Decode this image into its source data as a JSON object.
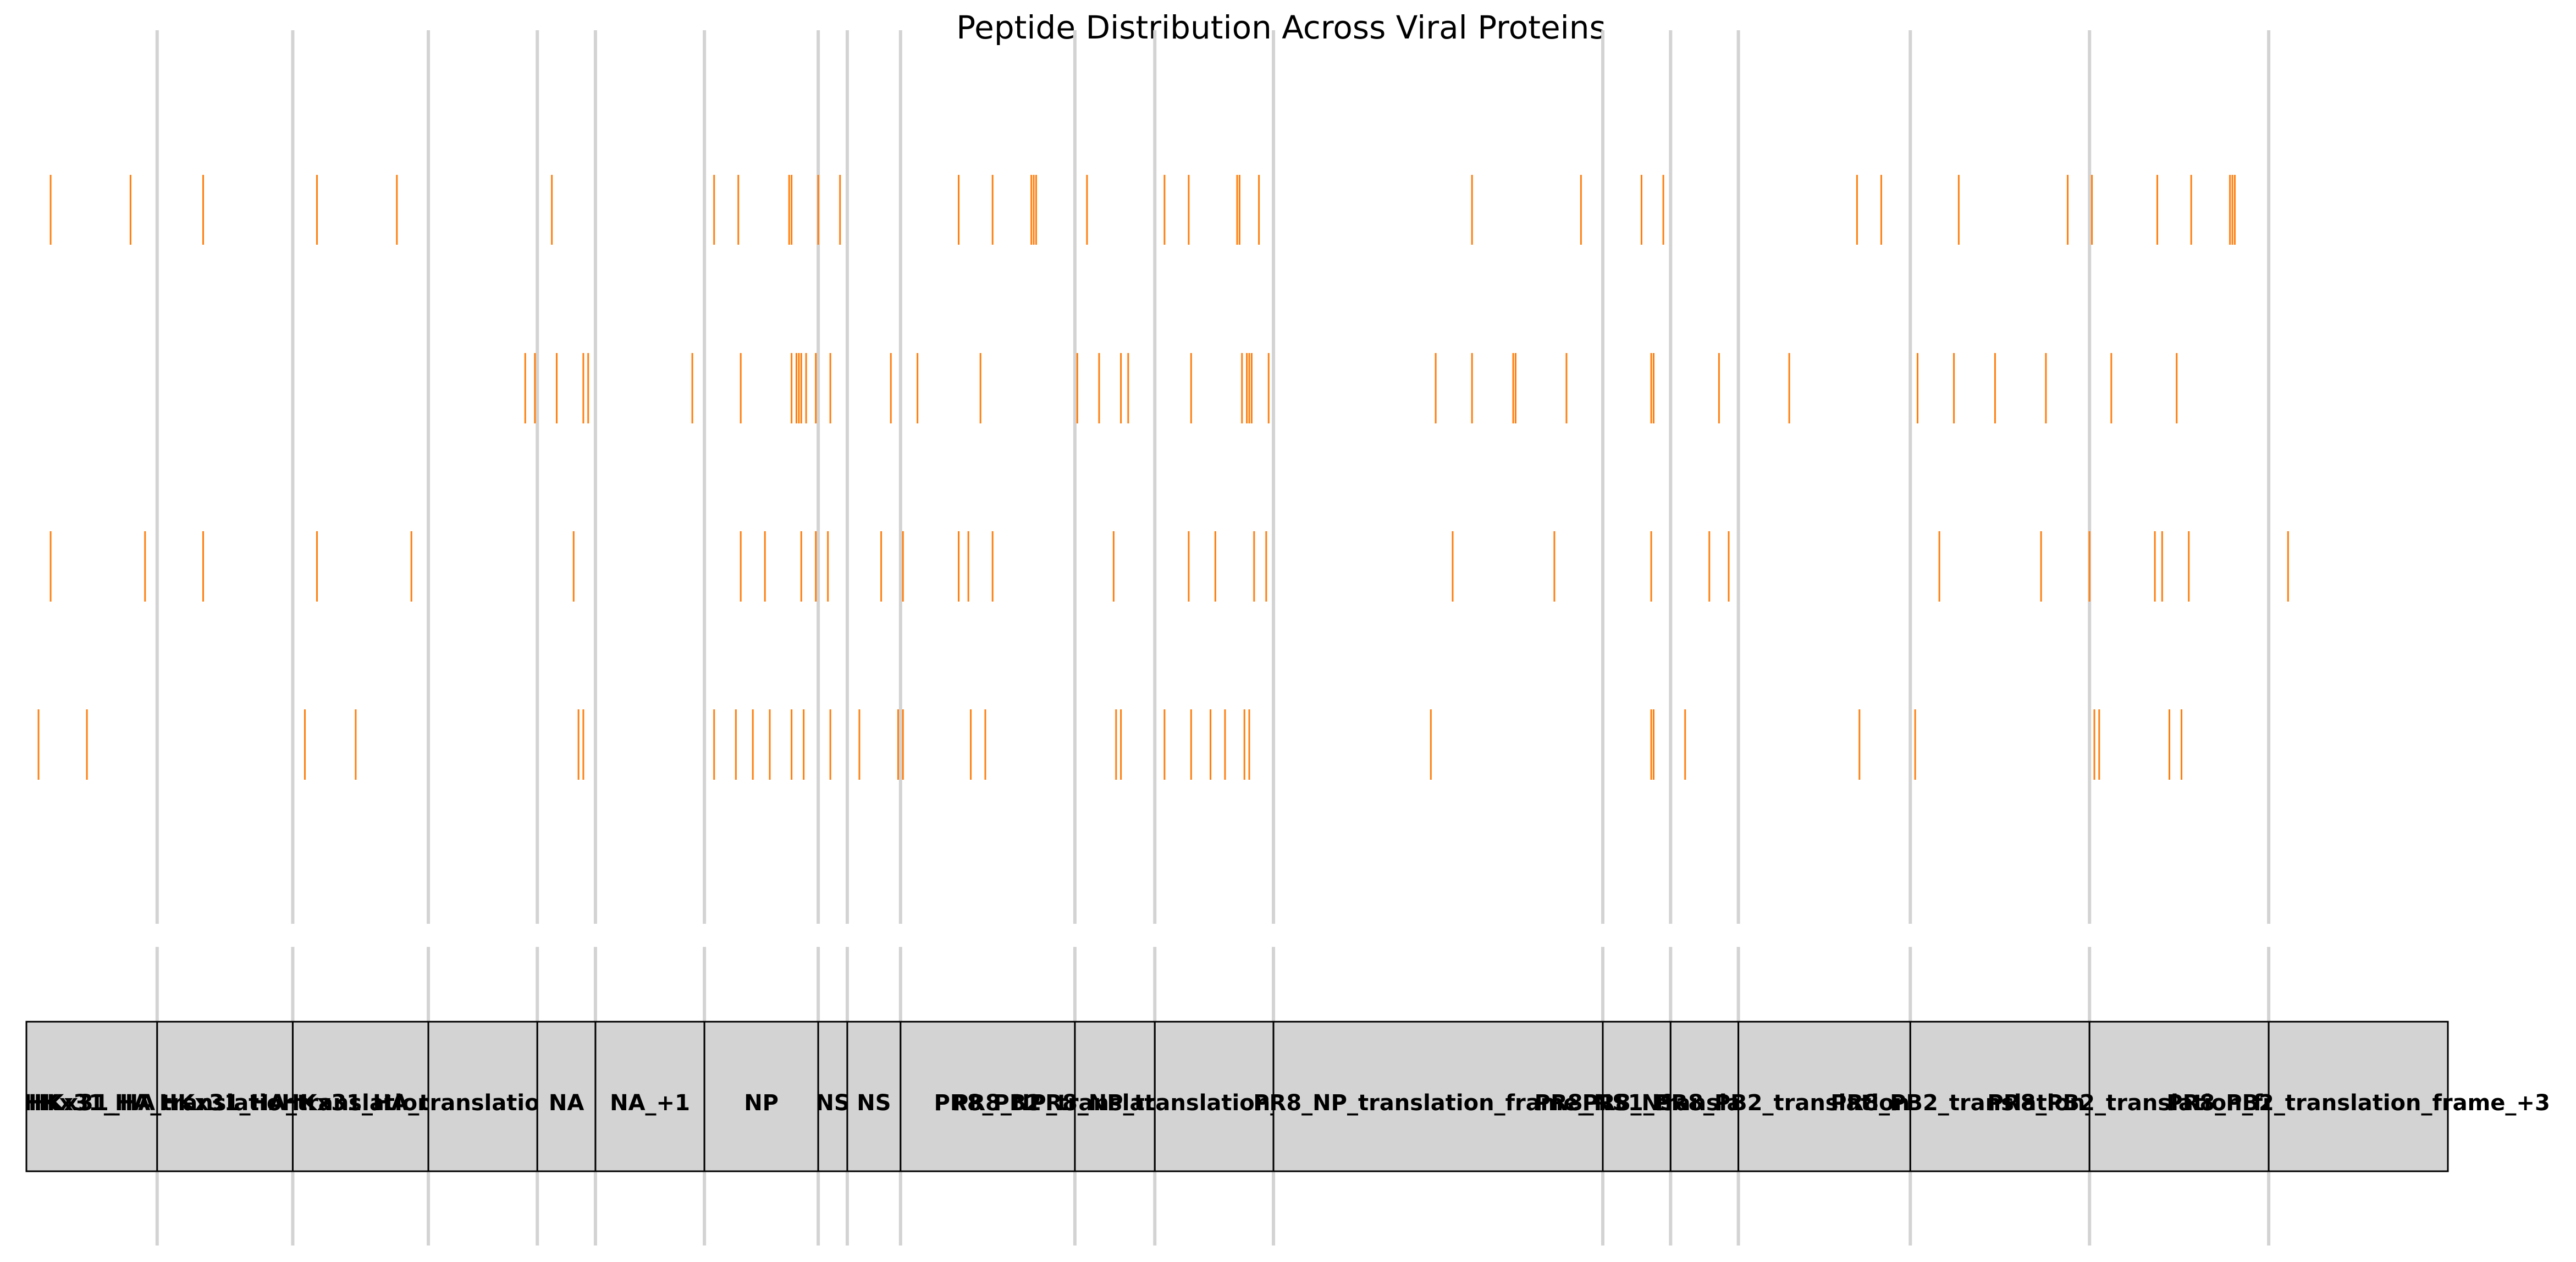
{
  "chart_data": {
    "type": "event-plot",
    "title": "Peptide Distribution Across Viral Proteins",
    "x_range": [
      0,
      1
    ],
    "colors": {
      "peptide": "#ff7f0e",
      "boundary": "#d3d3d3",
      "segment_fill": "#d3d3d3",
      "segment_edge": "#000000"
    },
    "boundaries": [
      0.054,
      0.11,
      0.166,
      0.211,
      0.235,
      0.28,
      0.327,
      0.339,
      0.361,
      0.433,
      0.466,
      0.515,
      0.651,
      0.679,
      0.707,
      0.778,
      0.852,
      0.926
    ],
    "segments": [
      {
        "label": "HKx31_HA",
        "start": 0.0,
        "end": 0.054
      },
      {
        "label": "HKx31_HA_translation_frame_+1",
        "start": 0.054,
        "end": 0.11
      },
      {
        "label": "HKx31_HA_translation_frame_+2",
        "start": 0.11,
        "end": 0.166
      },
      {
        "label": "HKx31_HA_translation_frame_+3",
        "start": 0.166,
        "end": 0.211
      },
      {
        "label": "NA",
        "start": 0.211,
        "end": 0.235
      },
      {
        "label": "NA_+1",
        "start": 0.235,
        "end": 0.28
      },
      {
        "label": "NP",
        "start": 0.28,
        "end": 0.327
      },
      {
        "label": "NS",
        "start": 0.327,
        "end": 0.339
      },
      {
        "label": "NS",
        "start": 0.339,
        "end": 0.361
      },
      {
        "label": "PR8_PB2",
        "start": 0.361,
        "end": 0.433
      },
      {
        "label": "PR8_NP_translation_frame",
        "start": 0.433,
        "end": 0.466
      },
      {
        "label": "PR8_NP_translation_frame_+1",
        "start": 0.466,
        "end": 0.515
      },
      {
        "label": "PR8_NP_translation_frame_+1",
        "start": 0.515,
        "end": 0.651
      },
      {
        "label": "PR8_NS1",
        "start": 0.651,
        "end": 0.679
      },
      {
        "label": "PR8_NS1_translation_frame",
        "start": 0.679,
        "end": 0.707
      },
      {
        "label": "PR8_PB2_translation_frame",
        "start": 0.707,
        "end": 0.778
      },
      {
        "label": "PR8_PB2_translation_frame",
        "start": 0.778,
        "end": 0.852
      },
      {
        "label": "PR8_PB2_translation_frame_+1",
        "start": 0.852,
        "end": 0.926
      },
      {
        "label": "PR8_PB2_translation_frame_+3",
        "start": 0.926,
        "end": 1.0
      }
    ],
    "rows": [
      {
        "positions": [
          0.01,
          0.043,
          0.073,
          0.12,
          0.153,
          0.217,
          0.284,
          0.294,
          0.315,
          0.316,
          0.327,
          0.336,
          0.385,
          0.399,
          0.415,
          0.416,
          0.417,
          0.438,
          0.47,
          0.48,
          0.5,
          0.501,
          0.509,
          0.597,
          0.642,
          0.667,
          0.676,
          0.756,
          0.766,
          0.798,
          0.843,
          0.853,
          0.88,
          0.894,
          0.91,
          0.911,
          0.912
        ]
      },
      {
        "positions": [
          0.206,
          0.21,
          0.219,
          0.23,
          0.232,
          0.275,
          0.295,
          0.316,
          0.318,
          0.319,
          0.32,
          0.322,
          0.326,
          0.332,
          0.357,
          0.368,
          0.394,
          0.434,
          0.443,
          0.452,
          0.455,
          0.481,
          0.502,
          0.504,
          0.505,
          0.506,
          0.513,
          0.582,
          0.597,
          0.614,
          0.615,
          0.636,
          0.671,
          0.672,
          0.699,
          0.728,
          0.781,
          0.796,
          0.813,
          0.834,
          0.861,
          0.888
        ]
      },
      {
        "positions": [
          0.01,
          0.049,
          0.073,
          0.12,
          0.159,
          0.226,
          0.295,
          0.305,
          0.32,
          0.326,
          0.331,
          0.353,
          0.362,
          0.385,
          0.389,
          0.399,
          0.449,
          0.48,
          0.491,
          0.507,
          0.512,
          0.589,
          0.631,
          0.671,
          0.695,
          0.703,
          0.79,
          0.832,
          0.852,
          0.879,
          0.882,
          0.893,
          0.934
        ]
      },
      {
        "positions": [
          0.005,
          0.025,
          0.115,
          0.136,
          0.228,
          0.23,
          0.284,
          0.293,
          0.3,
          0.307,
          0.316,
          0.321,
          0.332,
          0.344,
          0.36,
          0.362,
          0.39,
          0.396,
          0.45,
          0.452,
          0.47,
          0.481,
          0.489,
          0.495,
          0.503,
          0.505,
          0.58,
          0.671,
          0.672,
          0.685,
          0.757,
          0.78,
          0.854,
          0.856,
          0.885,
          0.89
        ]
      }
    ]
  }
}
